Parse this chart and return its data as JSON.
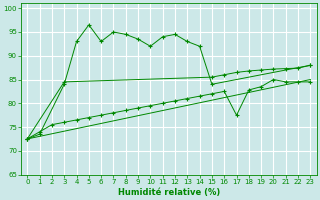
{
  "xlabel": "Humidité relative (%)",
  "bg_color": "#cce8e8",
  "grid_color": "#ffffff",
  "line_color": "#008800",
  "xlim": [
    -0.5,
    23.5
  ],
  "ylim": [
    65,
    101
  ],
  "yticks": [
    65,
    70,
    75,
    80,
    85,
    90,
    95,
    100
  ],
  "xticks": [
    0,
    1,
    2,
    3,
    4,
    5,
    6,
    7,
    8,
    9,
    10,
    11,
    12,
    13,
    14,
    15,
    16,
    17,
    18,
    19,
    20,
    21,
    22,
    23
  ],
  "series": {
    "s1": {
      "x": [
        0,
        1,
        3,
        4,
        5,
        6,
        7,
        8,
        9,
        10,
        11,
        12,
        13,
        14,
        15,
        23
      ],
      "y": [
        72.5,
        73.5,
        84,
        93,
        96.5,
        93,
        95,
        94.5,
        93.5,
        92,
        94,
        94.5,
        93,
        92,
        84,
        88
      ]
    },
    "s2": {
      "x": [
        0,
        3,
        15,
        16,
        17,
        18,
        19,
        20,
        21,
        22,
        23
      ],
      "y": [
        72.5,
        84.5,
        85.5,
        86,
        86.5,
        86.8,
        87,
        87.2,
        87.3,
        87.4,
        88
      ]
    },
    "s3": {
      "x": [
        0,
        23
      ],
      "y": [
        72.5,
        85
      ]
    },
    "s4": {
      "x": [
        0,
        1,
        2,
        3,
        4,
        5,
        6,
        7,
        8,
        9,
        10,
        11,
        12,
        13,
        14,
        15,
        16,
        17,
        18,
        19,
        20,
        21,
        22,
        23
      ],
      "y": [
        72.5,
        74,
        75.5,
        76,
        76.5,
        77,
        77.5,
        78,
        78.5,
        79,
        79.5,
        80,
        80.5,
        81,
        81.5,
        82,
        82.5,
        77.5,
        82.8,
        83.5,
        85,
        84.5,
        84.5,
        84.5
      ]
    }
  }
}
